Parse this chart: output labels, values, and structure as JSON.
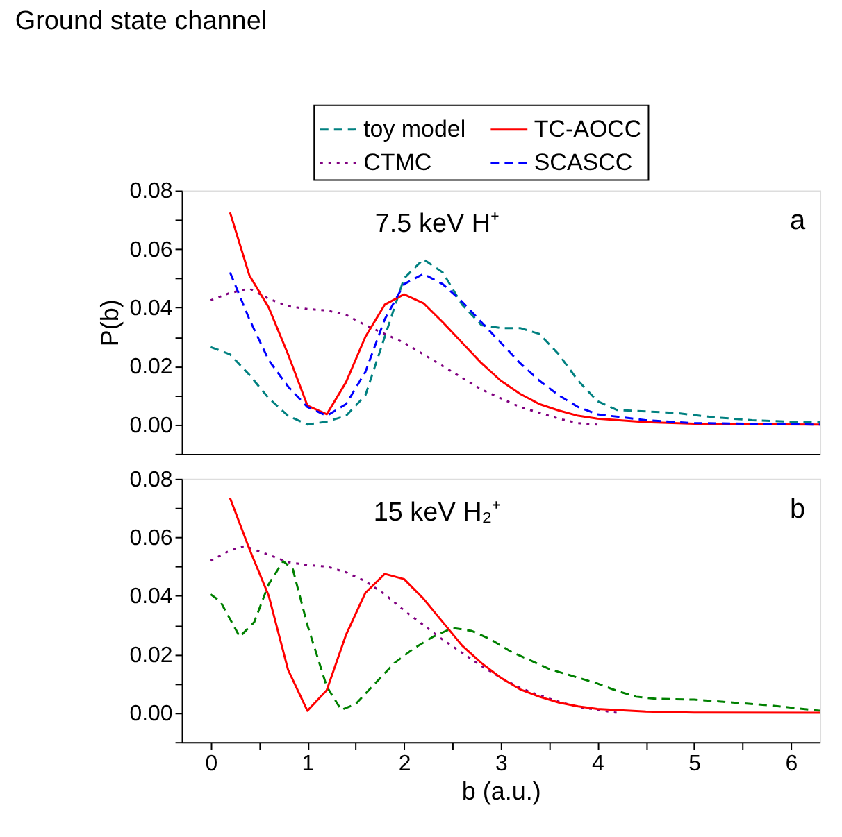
{
  "chart_data": [
    {
      "type": "line",
      "title": "Ground state channel",
      "ylabel": "P(b)",
      "annotations": [
        "7.5 keV H⁺",
        "a"
      ],
      "xlim": [
        -0.3,
        6.3
      ],
      "ylim": [
        -0.01,
        0.08
      ],
      "yticks": [
        {
          "value": -0.01,
          "label": null
        },
        {
          "value": 0,
          "label": "0.00"
        },
        {
          "value": 0.01,
          "label": null
        },
        {
          "value": 0.02,
          "label": "0.02"
        },
        {
          "value": 0.03,
          "label": null
        },
        {
          "value": 0.04,
          "label": "0.04"
        },
        {
          "value": 0.05,
          "label": null
        },
        {
          "value": 0.06,
          "label": "0.06"
        },
        {
          "value": 0.07,
          "label": null
        },
        {
          "value": 0.08,
          "label": "0.08"
        }
      ],
      "tick_labels": "y",
      "legend": "top right",
      "grid": false,
      "series": [
        {
          "name": "toy model",
          "color": "#008080",
          "line_style": "dashed",
          "x": [
            0,
            0.2,
            0.4,
            0.6,
            0.8,
            1.0,
            1.2,
            1.4,
            1.6,
            1.8,
            2.0,
            2.2,
            2.4,
            2.6,
            2.8,
            3.0,
            3.2,
            3.4,
            3.6,
            3.8,
            4.0,
            4.2,
            4.5,
            4.8,
            5.2,
            5.6,
            6.0,
            6.3
          ],
          "values": [
            0.0265,
            0.024,
            0.017,
            0.009,
            0.003,
            0.0,
            0.001,
            0.003,
            0.01,
            0.03,
            0.05,
            0.0565,
            0.052,
            0.041,
            0.034,
            0.033,
            0.033,
            0.031,
            0.024,
            0.015,
            0.008,
            0.005,
            0.0045,
            0.004,
            0.0025,
            0.0015,
            0.001,
            0.0008
          ]
        },
        {
          "name": "CTMC",
          "color": "#800080",
          "line_style": "dotted",
          "x": [
            0,
            0.2,
            0.4,
            0.6,
            0.8,
            1.0,
            1.2,
            1.4,
            1.6,
            1.8,
            2.0,
            2.2,
            2.4,
            2.6,
            2.8,
            3.0,
            3.2,
            3.4,
            3.6,
            3.8,
            4.0
          ],
          "values": [
            0.0425,
            0.045,
            0.0465,
            0.043,
            0.0405,
            0.0395,
            0.039,
            0.0375,
            0.034,
            0.031,
            0.028,
            0.024,
            0.02,
            0.016,
            0.012,
            0.009,
            0.006,
            0.004,
            0.002,
            0.0005,
            0.0
          ]
        },
        {
          "name": "TC-AOCC",
          "color": "#ff0000",
          "line_style": "solid",
          "x": [
            0.2,
            0.4,
            0.6,
            0.8,
            1.0,
            1.2,
            1.4,
            1.6,
            1.8,
            2.0,
            2.2,
            2.4,
            2.6,
            2.8,
            3.0,
            3.2,
            3.4,
            3.6,
            3.8,
            4.0,
            4.5,
            5.0,
            5.5,
            6.3
          ],
          "values": [
            0.0725,
            0.051,
            0.04,
            0.024,
            0.0065,
            0.0035,
            0.0145,
            0.03,
            0.041,
            0.0445,
            0.0415,
            0.035,
            0.028,
            0.021,
            0.015,
            0.0105,
            0.007,
            0.0048,
            0.003,
            0.002,
            0.0008,
            0.0003,
            0.0001,
            0.0
          ]
        },
        {
          "name": "SCASCC",
          "color": "#0000ff",
          "line_style": "dashed",
          "x": [
            0.2,
            0.4,
            0.6,
            0.8,
            1.0,
            1.2,
            1.4,
            1.6,
            1.8,
            2.0,
            2.2,
            2.4,
            2.6,
            2.8,
            3.0,
            3.2,
            3.4,
            3.6,
            3.8,
            4.0,
            4.5,
            5.0,
            6.0,
            6.3
          ],
          "values": [
            0.052,
            0.036,
            0.022,
            0.013,
            0.006,
            0.003,
            0.007,
            0.018,
            0.036,
            0.048,
            0.0515,
            0.048,
            0.042,
            0.035,
            0.028,
            0.021,
            0.015,
            0.01,
            0.006,
            0.0035,
            0.0015,
            0.0005,
            0.0001,
            0.0
          ]
        }
      ]
    },
    {
      "type": "line",
      "xlabel": "b (a.u.)",
      "annotations": [
        "15 keV H₂⁺",
        "b"
      ],
      "xlim": [
        -0.3,
        6.3
      ],
      "ylim": [
        -0.01,
        0.08
      ],
      "xticks": [
        0,
        {
          "value": 0.5,
          "label": null
        },
        1,
        {
          "value": 1.5,
          "label": null
        },
        2,
        {
          "value": 2.5,
          "label": null
        },
        3,
        {
          "value": 3.5,
          "label": null
        },
        4,
        {
          "value": 4.5,
          "label": null
        },
        5,
        {
          "value": 5.5,
          "label": null
        },
        6
      ],
      "yticks": [
        {
          "value": -0.01,
          "label": null
        },
        {
          "value": 0,
          "label": "0.00"
        },
        {
          "value": 0.01,
          "label": null
        },
        {
          "value": 0.02,
          "label": "0.02"
        },
        {
          "value": 0.03,
          "label": null
        },
        {
          "value": 0.04,
          "label": "0.04"
        },
        {
          "value": 0.05,
          "label": null
        },
        {
          "value": 0.06,
          "label": "0.06"
        },
        {
          "value": 0.07,
          "label": null
        },
        {
          "value": 0.08,
          "label": "0.08"
        }
      ],
      "grid": false,
      "series": [
        {
          "color": "#008000",
          "line_style": "dashed",
          "x": [
            0,
            0.1,
            0.3,
            0.45,
            0.6,
            0.75,
            0.85,
            1.0,
            1.2,
            1.35,
            1.5,
            1.7,
            1.9,
            2.1,
            2.3,
            2.5,
            2.7,
            2.9,
            3.1,
            3.3,
            3.5,
            3.7,
            4.0,
            4.2,
            4.4,
            4.6,
            5.0,
            5.4,
            5.8,
            6.3
          ],
          "values": [
            0.0405,
            0.038,
            0.026,
            0.031,
            0.044,
            0.0518,
            0.049,
            0.03,
            0.009,
            0.001,
            0.003,
            0.01,
            0.017,
            0.022,
            0.026,
            0.029,
            0.028,
            0.025,
            0.021,
            0.018,
            0.015,
            0.013,
            0.01,
            0.0075,
            0.0055,
            0.0048,
            0.0045,
            0.0035,
            0.0025,
            0.0007
          ]
        },
        {
          "color": "#800080",
          "line_style": "dotted",
          "x": [
            0,
            0.2,
            0.35,
            0.6,
            0.8,
            1.0,
            1.2,
            1.4,
            1.6,
            1.8,
            2.0,
            2.2,
            2.4,
            2.6,
            2.8,
            3.0,
            3.2,
            3.4,
            3.6,
            3.8,
            4.0,
            4.2
          ],
          "values": [
            0.052,
            0.0555,
            0.057,
            0.054,
            0.0515,
            0.0505,
            0.05,
            0.048,
            0.045,
            0.0405,
            0.035,
            0.03,
            0.025,
            0.0205,
            0.016,
            0.012,
            0.0085,
            0.006,
            0.0038,
            0.002,
            0.001,
            0.0
          ]
        },
        {
          "color": "#ff0000",
          "line_style": "solid",
          "x": [
            0.2,
            0.4,
            0.6,
            0.8,
            1.0,
            1.2,
            1.4,
            1.6,
            1.8,
            2.0,
            2.2,
            2.4,
            2.6,
            2.8,
            3.0,
            3.2,
            3.4,
            3.6,
            3.8,
            4.0,
            4.5,
            5.0,
            6.3
          ],
          "values": [
            0.0734,
            0.056,
            0.04,
            0.0147,
            0.0007,
            0.0077,
            0.0267,
            0.041,
            0.0475,
            0.0457,
            0.039,
            0.031,
            0.023,
            0.017,
            0.012,
            0.008,
            0.0055,
            0.0035,
            0.0022,
            0.0013,
            0.0004,
            0.0001,
            0.0
          ]
        }
      ]
    }
  ]
}
